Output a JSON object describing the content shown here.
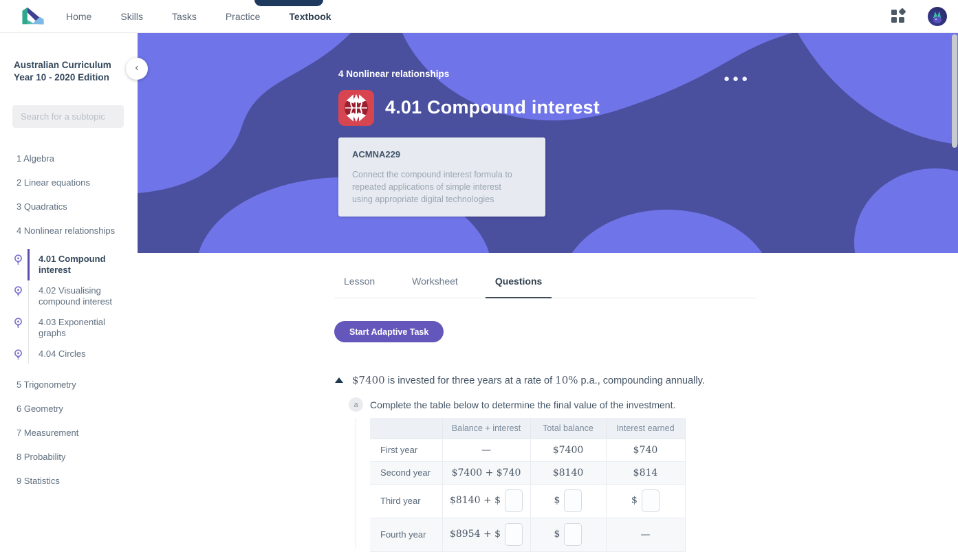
{
  "header": {
    "nav_items": [
      {
        "label": "Home"
      },
      {
        "label": "Skills"
      },
      {
        "label": "Tasks"
      },
      {
        "label": "Practice"
      },
      {
        "label": "Textbook"
      }
    ],
    "active_nav": "Textbook"
  },
  "sidebar": {
    "title": "Australian Curriculum Year 10 - 2020 Edition",
    "search_placeholder": "Search for a subtopic",
    "topics": [
      {
        "label": "1 Algebra"
      },
      {
        "label": "2 Linear equations"
      },
      {
        "label": "3 Quadratics"
      },
      {
        "label": "4 Nonlinear relationships",
        "expanded": true,
        "subtopics": [
          {
            "label": "4.01 Compound interest",
            "active": true
          },
          {
            "label": "4.02 Visualising compound interest"
          },
          {
            "label": "4.03 Exponential graphs"
          },
          {
            "label": "4.04 Circles"
          }
        ]
      },
      {
        "label": "5 Trigonometry"
      },
      {
        "label": "6 Geometry"
      },
      {
        "label": "7 Measurement"
      },
      {
        "label": "8 Probability"
      },
      {
        "label": "9 Statistics"
      }
    ]
  },
  "hero": {
    "breadcrumb": "4 Nonlinear relationships",
    "title": "4.01 Compound interest",
    "standard": {
      "code": "ACMNA229",
      "description": "Connect the compound interest formula to repeated applications of simple interest using appropriate digital technologies"
    }
  },
  "content": {
    "tabs": [
      {
        "label": "Lesson"
      },
      {
        "label": "Worksheet"
      },
      {
        "label": "Questions",
        "active": true
      }
    ],
    "start_button": "Start Adaptive Task",
    "question": {
      "intro_segments": [
        {
          "text": "$7400",
          "math": true
        },
        {
          "text": " is invested for three years at a rate of ",
          "math": false
        },
        {
          "text": "10%",
          "math": true
        },
        {
          "text": " p.a., compounding annually.",
          "math": false
        }
      ],
      "parts": [
        {
          "label": "a",
          "text": "Complete the table below to determine the final value of the investment."
        }
      ]
    },
    "table": {
      "headers": [
        "",
        "Balance + interest",
        "Total balance",
        "Interest earned"
      ],
      "rows": [
        {
          "label": "First year",
          "cells": [
            {
              "text": "—"
            },
            {
              "text": "$7400"
            },
            {
              "text": "$740"
            }
          ]
        },
        {
          "label": "Second year",
          "cells": [
            {
              "text": "$7400 + $740"
            },
            {
              "text": "$8140"
            },
            {
              "text": "$814"
            }
          ]
        },
        {
          "label": "Third year",
          "cells": [
            {
              "text": "$8140 + $",
              "input": true
            },
            {
              "text": "$",
              "input": true
            },
            {
              "text": "$",
              "input": true
            }
          ]
        },
        {
          "label": "Fourth year",
          "cells": [
            {
              "text": "$8954 + $",
              "input": true
            },
            {
              "text": "$",
              "input": true
            },
            {
              "text": "—"
            }
          ]
        }
      ]
    }
  },
  "colors": {
    "banner_base": "#4a4f9e",
    "banner_blob": "#6f74e8",
    "accent_purple": "#6457bb",
    "hero_icon_red": "#d64550",
    "active_tab_underline": "#3e4a58"
  }
}
